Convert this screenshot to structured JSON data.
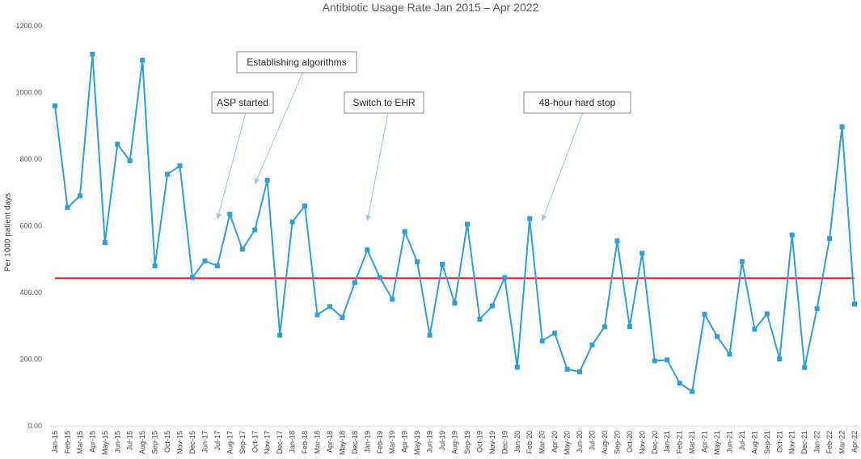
{
  "chart_data": {
    "type": "line",
    "title": "Antibiotic Usage Rate Jan 2015 – Apr 2022",
    "xlabel": "",
    "ylabel": "Per 1000 patient days",
    "ylim": [
      0,
      1200
    ],
    "yticks": [
      "0.00",
      "200.00",
      "400.00",
      "600.00",
      "800.00",
      "1000.00",
      "1200.00"
    ],
    "grid": false,
    "categories": [
      "Jan-15",
      "Feb-15",
      "Mar-15",
      "Apr-15",
      "May-15",
      "Jun-15",
      "Jul-15",
      "Aug-15",
      "Sep-15",
      "Oct-15",
      "Nov-15",
      "Dec-15",
      "Jun-17",
      "Jul-17",
      "Aug-17",
      "Sep-17",
      "Oct-17",
      "Nov-17",
      "Dec-17",
      "Jan-18",
      "Feb-18",
      "Mar-18",
      "Apr-18",
      "May-18",
      "Dec-18",
      "Jan-19",
      "Feb-19",
      "Mar-19",
      "Apr-19",
      "May-19",
      "Jun-19",
      "Jul-19",
      "Aug-19",
      "Sep-19",
      "Oct-19",
      "Nov-19",
      "Dec-19",
      "Jan-20",
      "Feb-20",
      "Mar-20",
      "Apr-20",
      "May-20",
      "Jun-20",
      "Jul-20",
      "Aug-20",
      "Sep-20",
      "Oct-20",
      "Nov-20",
      "Dec-20",
      "Jan-21",
      "Feb-21",
      "Mar-21",
      "Apr-21",
      "May-21",
      "Jun-21",
      "Jul-21",
      "Aug-21",
      "Sep-21",
      "Oct-21",
      "Nov-21",
      "Dec-21",
      "Jan-22",
      "Feb-22",
      "Mar-22",
      "Apr-22"
    ],
    "series": [
      {
        "values": [
          960,
          655,
          690,
          1115,
          550,
          845,
          795,
          1097,
          480,
          755,
          780,
          445,
          495,
          480,
          635,
          530,
          588,
          737,
          272,
          612,
          660,
          333,
          358,
          325,
          430,
          528,
          445,
          380,
          583,
          492,
          272,
          485,
          368,
          605,
          320,
          360,
          445,
          176,
          622,
          255,
          278,
          170,
          162,
          243,
          297,
          555,
          298,
          518,
          195,
          198,
          128,
          103,
          335,
          268,
          215,
          493,
          290,
          336,
          201,
          573,
          175,
          352,
          562,
          897,
          365
        ],
        "color": "#2e9fd9"
      }
    ],
    "reference_line": {
      "value": 443,
      "color": "#e8201c"
    },
    "annotations": [
      {
        "text": "ASP started",
        "target_category": "Jul-17",
        "target_value": 620
      },
      {
        "text": "Establishing algorithms",
        "target_category": "Oct-17",
        "target_value": 725
      },
      {
        "text": "Switch to EHR",
        "target_category": "Jan-19",
        "target_value": 615
      },
      {
        "text": "48-hour hard stop",
        "target_category": "Mar-20",
        "target_value": 615
      }
    ]
  }
}
